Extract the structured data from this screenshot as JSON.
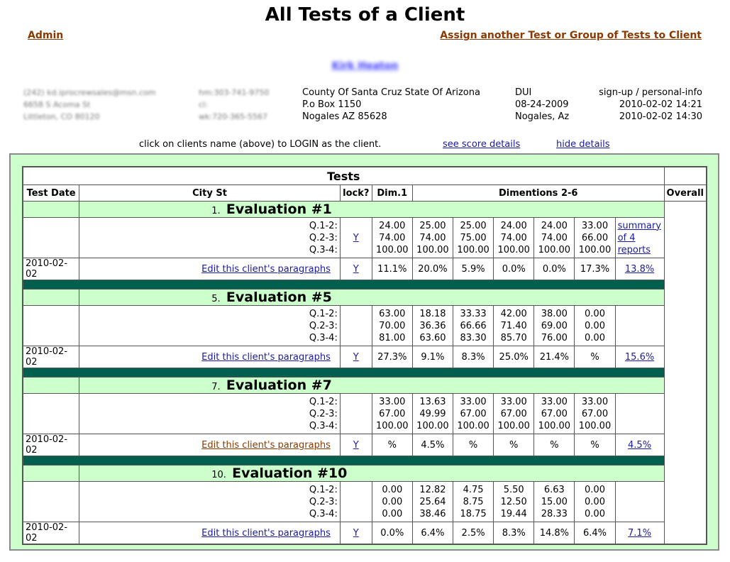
{
  "page": {
    "title": "All Tests of a Client",
    "admin_link": "Admin",
    "assign_link": "Assign another Test or Group of Tests to Client",
    "client_name": "Kirk Heaton"
  },
  "client": {
    "contact_col1": [
      "(242) kd.iprocrewsales@msn.com",
      "6658 S Acoma St",
      "Littleton, CO 80120"
    ],
    "contact_col2": [
      "hm:303-741-9750",
      "cl:",
      "wk:720-365-5567"
    ],
    "agency": [
      "County Of Santa Cruz State Of Arizona",
      "P.o Box 1150",
      "Nogales AZ 85628"
    ],
    "case": [
      "DUI",
      "08-24-2009",
      "Nogales, Az"
    ],
    "meta": [
      "sign-up / personal-info",
      "2010-02-02 14:21",
      "2010-02-02 14:30"
    ]
  },
  "notes": {
    "login_note": "click on clients name (above) to LOGIN as the client.",
    "score_details": "see score details",
    "hide_details": "hide details"
  },
  "table": {
    "caption": "Tests",
    "headers": {
      "test_date": "Test Date",
      "city_st": "City St",
      "lock": "lock?",
      "dim1": "Dim.1",
      "dims": "Dimentions 2-6",
      "overall": "Overall"
    },
    "q_labels": [
      "Q.1-2:",
      "Q.2-3:",
      "Q.3-4:"
    ],
    "evaluations": [
      {
        "number": "1.",
        "name": "Evaluation #1",
        "q_lock": "Y",
        "q_values": [
          [
            "24.00",
            "74.00",
            "100.00"
          ],
          [
            "25.00",
            "74.00",
            "100.00"
          ],
          [
            "25.00",
            "75.00",
            "100.00"
          ],
          [
            "24.00",
            "74.00",
            "100.00"
          ],
          [
            "24.00",
            "74.00",
            "100.00"
          ],
          [
            "33.00",
            "66.00",
            "100.00"
          ]
        ],
        "summary_link": "summary of 4 reports",
        "date": "2010-02-02",
        "edit_link": "Edit this client's paragraphs",
        "lock": "Y",
        "percents": [
          "11.1%",
          "20.0%",
          "5.9%",
          "0.0%",
          "0.0%",
          "17.3%"
        ],
        "overall": "13.8%"
      },
      {
        "number": "5.",
        "name": "Evaluation #5",
        "q_lock": "",
        "q_values": [
          [
            "63.00",
            "70.00",
            "81.00"
          ],
          [
            "18.18",
            "36.36",
            "63.60"
          ],
          [
            "33.33",
            "66.66",
            "83.30"
          ],
          [
            "42.00",
            "71.40",
            "85.70"
          ],
          [
            "38.00",
            "69.00",
            "76.00"
          ],
          [
            "0.00",
            "0.00",
            "0.00"
          ]
        ],
        "summary_link": "",
        "date": "2010-02-02",
        "edit_link": "Edit this client's paragraphs",
        "lock": "Y",
        "percents": [
          "27.3%",
          "9.1%",
          "8.3%",
          "25.0%",
          "21.4%",
          "%"
        ],
        "overall": "15.6%"
      },
      {
        "number": "7.",
        "name": "Evaluation #7",
        "q_lock": "",
        "q_values": [
          [
            "33.00",
            "67.00",
            "100.00"
          ],
          [
            "13.63",
            "49.99",
            "100.00"
          ],
          [
            "33.00",
            "67.00",
            "100.00"
          ],
          [
            "33.00",
            "67.00",
            "100.00"
          ],
          [
            "33.00",
            "67.00",
            "100.00"
          ],
          [
            "33.00",
            "67.00",
            "100.00"
          ]
        ],
        "summary_link": "",
        "date": "2010-02-02",
        "edit_link": "Edit this client's paragraphs",
        "edit_visited": true,
        "lock": "Y",
        "percents": [
          "%",
          "4.5%",
          "%",
          "%",
          "%",
          "%"
        ],
        "overall": "4.5%"
      },
      {
        "number": "10.",
        "name": "Evaluation #10",
        "q_lock": "",
        "q_values": [
          [
            "0.00",
            "0.00",
            "0.00"
          ],
          [
            "12.82",
            "25.64",
            "38.46"
          ],
          [
            "4.75",
            "8.75",
            "18.75"
          ],
          [
            "5.50",
            "12.50",
            "19.44"
          ],
          [
            "6.63",
            "15.00",
            "28.33"
          ],
          [
            "0.00",
            "0.00",
            "0.00"
          ]
        ],
        "summary_link": "",
        "date": "2010-02-02",
        "edit_link": "Edit this client's paragraphs",
        "lock": "Y",
        "percents": [
          "0.0%",
          "6.4%",
          "2.5%",
          "8.3%",
          "14.8%",
          "6.4%"
        ],
        "overall": "7.1%"
      }
    ]
  },
  "colors": {
    "panel_bg": "#ccffcc",
    "separator": "#006050",
    "link": "#1a1aa8",
    "visited_link": "#8a3a00"
  }
}
